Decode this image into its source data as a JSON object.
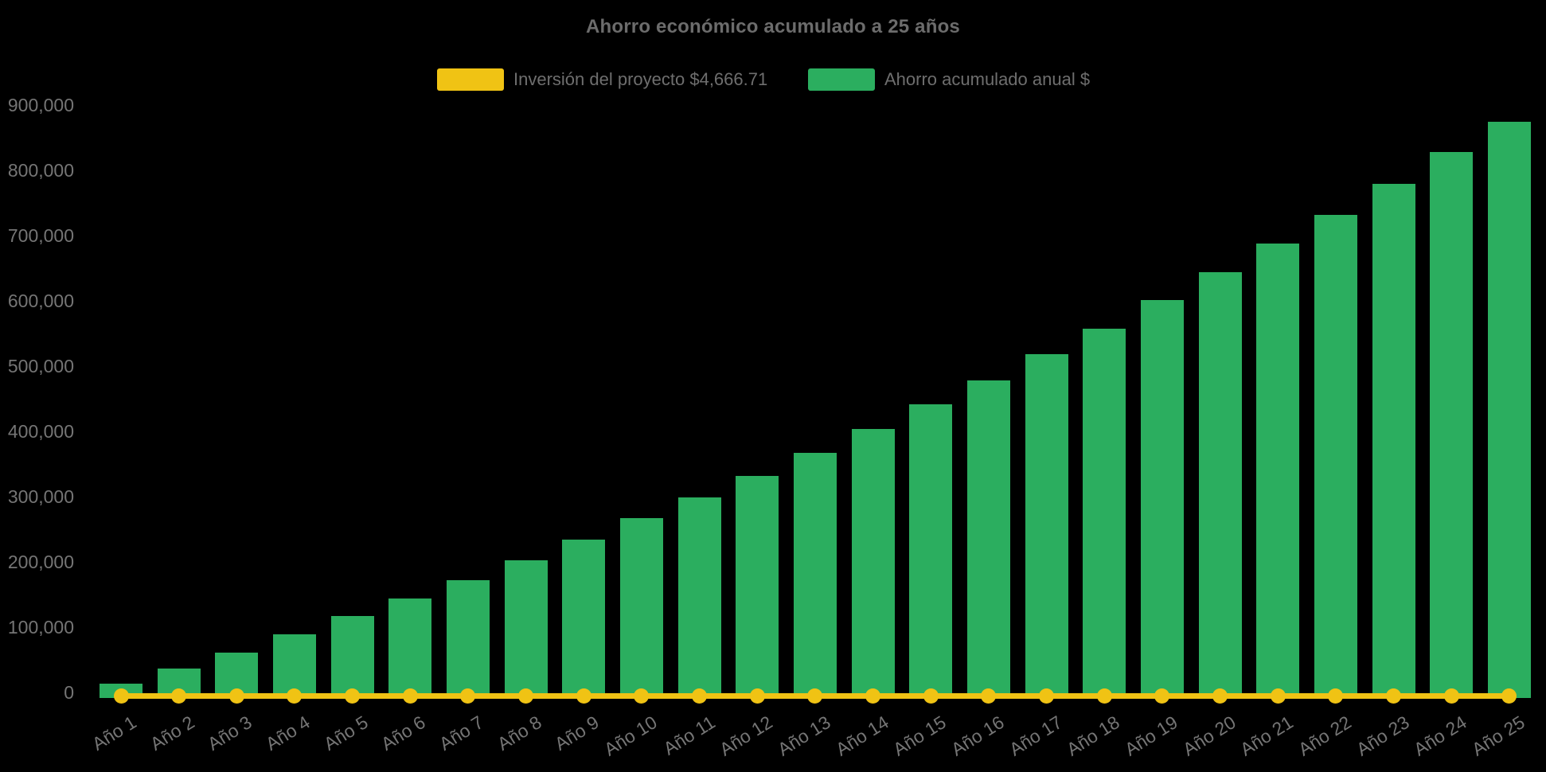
{
  "chart_data": {
    "type": "bar",
    "title": "Ahorro económico acumulado a 25 años",
    "background_color": "#000000",
    "title_color": "#6c6c6c",
    "axis_text_color": "#757575",
    "grid": false,
    "legend_position": "top-center",
    "x_label_rotation_deg": -32,
    "ylim": [
      0,
      900000
    ],
    "yticks": [
      0,
      100000,
      200000,
      300000,
      400000,
      500000,
      600000,
      700000,
      800000,
      900000
    ],
    "ytick_labels": [
      "0",
      "100,000",
      "200,000",
      "300,000",
      "400,000",
      "500,000",
      "600,000",
      "700,000",
      "800,000",
      "900,000"
    ],
    "categories": [
      "Año 1",
      "Año 2",
      "Año 3",
      "Año 4",
      "Año 5",
      "Año 6",
      "Año 7",
      "Año 8",
      "Año 9",
      "Año 10",
      "Año 11",
      "Año 12",
      "Año 13",
      "Año 14",
      "Año 15",
      "Año 16",
      "Año 17",
      "Año 18",
      "Año 19",
      "Año 20",
      "Año 21",
      "Año 22",
      "Año 23",
      "Año 24",
      "Año 25"
    ],
    "series": [
      {
        "name": "Inversión del proyecto $4,666.71",
        "type": "line",
        "color": "#F0C314",
        "marker": "circle",
        "investment_value": 4666.71,
        "values": [
          4666.71,
          4666.71,
          4666.71,
          4666.71,
          4666.71,
          4666.71,
          4666.71,
          4666.71,
          4666.71,
          4666.71,
          4666.71,
          4666.71,
          4666.71,
          4666.71,
          4666.71,
          4666.71,
          4666.71,
          4666.71,
          4666.71,
          4666.71,
          4666.71,
          4666.71,
          4666.71,
          4666.71,
          4666.71
        ]
      },
      {
        "name": "Ahorro acumulado anual $",
        "type": "bar",
        "color": "#2BAE5F",
        "values": [
          22000,
          45000,
          69000,
          97000,
          124000,
          151000,
          179000,
          209000,
          241000,
          273000,
          305000,
          337000,
          373000,
          409000,
          446000,
          483000,
          522000,
          561000,
          604000,
          647000,
          690000,
          734000,
          781000,
          829000,
          876000
        ]
      }
    ]
  }
}
